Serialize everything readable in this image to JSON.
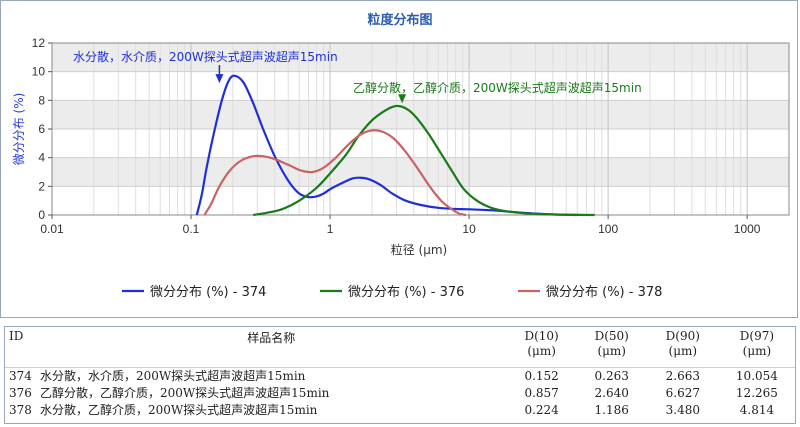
{
  "chart_data": {
    "type": "line",
    "title": "粒度分布图",
    "xlabel": "粒径 (μm)",
    "ylabel": "微分分布 (%)",
    "x_scale": "log",
    "xlim": [
      0.01,
      2000
    ],
    "ylim": [
      0,
      12
    ],
    "x_ticks": [
      {
        "value": 0.01,
        "label": "0.01"
      },
      {
        "value": 0.1,
        "label": "0.1"
      },
      {
        "value": 1,
        "label": "1"
      },
      {
        "value": 10,
        "label": "10"
      },
      {
        "value": 100,
        "label": "100"
      },
      {
        "value": 1000,
        "label": "1000"
      }
    ],
    "y_ticks": [
      0,
      2,
      4,
      6,
      8,
      10,
      12
    ],
    "grid": true,
    "legend_position": "bottom",
    "series": [
      {
        "name": "微分分布 (%) - 374",
        "color": "#1f2fd6",
        "points": [
          [
            0.11,
            0
          ],
          [
            0.12,
            1.5
          ],
          [
            0.13,
            3.4
          ],
          [
            0.15,
            6.2
          ],
          [
            0.17,
            8.3
          ],
          [
            0.19,
            9.5
          ],
          [
            0.21,
            9.7
          ],
          [
            0.24,
            9.2
          ],
          [
            0.28,
            7.8
          ],
          [
            0.33,
            6.0
          ],
          [
            0.4,
            4.1
          ],
          [
            0.5,
            2.4
          ],
          [
            0.6,
            1.5
          ],
          [
            0.7,
            1.25
          ],
          [
            0.8,
            1.3
          ],
          [
            0.9,
            1.5
          ],
          [
            1.0,
            1.8
          ],
          [
            1.2,
            2.2
          ],
          [
            1.45,
            2.55
          ],
          [
            1.65,
            2.6
          ],
          [
            1.9,
            2.5
          ],
          [
            2.3,
            2.1
          ],
          [
            2.8,
            1.5
          ],
          [
            3.5,
            1.0
          ],
          [
            4.5,
            0.7
          ],
          [
            6,
            0.5
          ],
          [
            8,
            0.42
          ],
          [
            10,
            0.4
          ],
          [
            15,
            0.32
          ],
          [
            20,
            0.22
          ],
          [
            30,
            0.1
          ],
          [
            40,
            0.04
          ],
          [
            60,
            0
          ]
        ]
      },
      {
        "name": "微分分布 (%) - 376",
        "color": "#1a7a1a",
        "points": [
          [
            0.28,
            0
          ],
          [
            0.35,
            0.15
          ],
          [
            0.45,
            0.4
          ],
          [
            0.6,
            1.0
          ],
          [
            0.8,
            1.9
          ],
          [
            1.0,
            2.9
          ],
          [
            1.3,
            4.2
          ],
          [
            1.6,
            5.5
          ],
          [
            2.0,
            6.6
          ],
          [
            2.5,
            7.3
          ],
          [
            2.95,
            7.6
          ],
          [
            3.4,
            7.5
          ],
          [
            4.0,
            7.0
          ],
          [
            5.0,
            5.8
          ],
          [
            6.0,
            4.6
          ],
          [
            7.5,
            3.1
          ],
          [
            9,
            1.9
          ],
          [
            11,
            1.1
          ],
          [
            14,
            0.55
          ],
          [
            18,
            0.28
          ],
          [
            25,
            0.12
          ],
          [
            35,
            0.05
          ],
          [
            50,
            0.02
          ],
          [
            80,
            0
          ]
        ]
      },
      {
        "name": "微分分布 (%) - 378",
        "color": "#c86464",
        "points": [
          [
            0.125,
            0
          ],
          [
            0.14,
            0.8
          ],
          [
            0.16,
            2.0
          ],
          [
            0.19,
            3.1
          ],
          [
            0.23,
            3.8
          ],
          [
            0.28,
            4.1
          ],
          [
            0.33,
            4.1
          ],
          [
            0.4,
            3.9
          ],
          [
            0.5,
            3.5
          ],
          [
            0.62,
            3.1
          ],
          [
            0.75,
            3.0
          ],
          [
            0.9,
            3.3
          ],
          [
            1.1,
            4.0
          ],
          [
            1.35,
            4.9
          ],
          [
            1.65,
            5.6
          ],
          [
            2.0,
            5.9
          ],
          [
            2.4,
            5.8
          ],
          [
            2.9,
            5.3
          ],
          [
            3.5,
            4.4
          ],
          [
            4.3,
            3.2
          ],
          [
            5.2,
            2.0
          ],
          [
            6.3,
            1.0
          ],
          [
            7.5,
            0.4
          ],
          [
            8.5,
            0.1
          ],
          [
            9.5,
            0
          ]
        ]
      }
    ],
    "annotations": [
      {
        "text": "水分散，水介质，200W探头式超声波超声15min",
        "color": "#1f2fd6",
        "arrow_to": [
          0.16,
          9.2
        ]
      },
      {
        "text": "乙醇分散，乙醇介质，200W探头式超声波超声15min",
        "color": "#1a7a1a",
        "arrow_to": [
          3.3,
          7.8
        ]
      }
    ]
  },
  "table": {
    "headers": {
      "id": "ID",
      "name": "样品名称",
      "d10": [
        "D(10)",
        "(μm)"
      ],
      "d50": [
        "D(50)",
        "(μm)"
      ],
      "d90": [
        "D(90)",
        "(μm)"
      ],
      "d97": [
        "D(97)",
        "(μm)"
      ]
    },
    "rows": [
      {
        "id": "374",
        "name": "水分散，水介质，200W探头式超声波超声15min",
        "d10": "0.152",
        "d50": "0.263",
        "d90": "2.663",
        "d97": "10.054"
      },
      {
        "id": "376",
        "name": "乙醇分散，乙醇介质，200W探头式超声波超声15min",
        "d10": "0.857",
        "d50": "2.640",
        "d90": "6.627",
        "d97": "12.265"
      },
      {
        "id": "378",
        "name": "水分散，乙醇介质，200W探头式超声波超声15min",
        "d10": "0.224",
        "d50": "1.186",
        "d90": "3.480",
        "d97": "4.814"
      }
    ]
  }
}
